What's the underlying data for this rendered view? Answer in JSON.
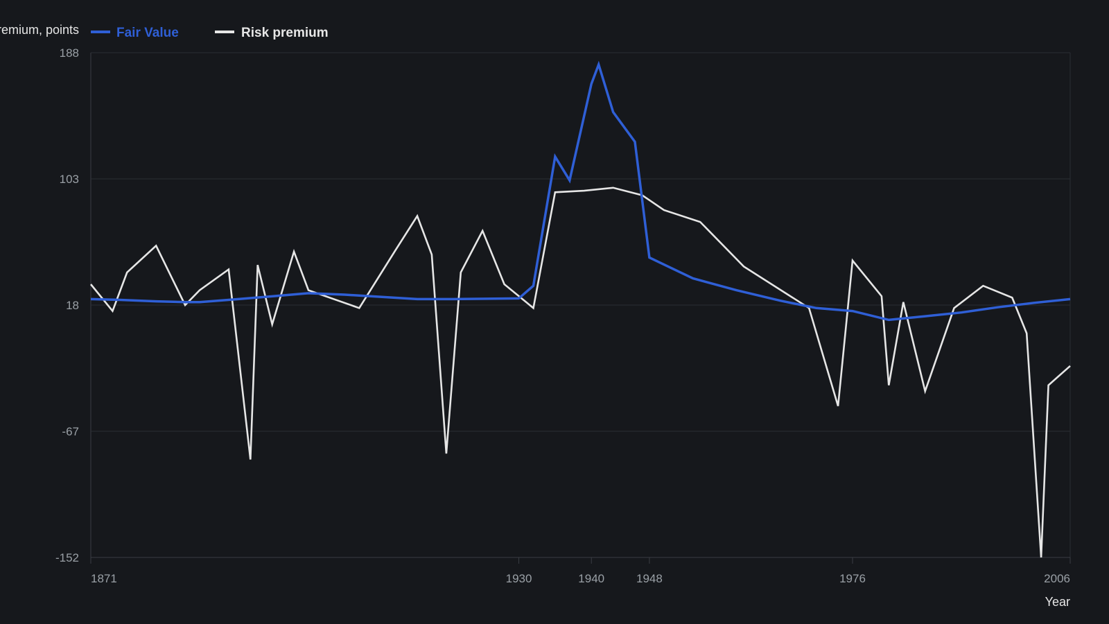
{
  "chart_data": {
    "type": "line",
    "ylabel": "Fair Value, Risk premium, points",
    "xlabel": "Year",
    "ylim": [
      -152,
      188
    ],
    "xlim": [
      1871,
      2006
    ],
    "yticks": [
      -152,
      -67,
      18,
      103,
      188
    ],
    "xticks": [
      1871,
      1930,
      1940,
      1948,
      1976,
      2006
    ],
    "legend_position": "top-left",
    "grid": true,
    "series": [
      {
        "name": "Fair Value",
        "color": "#2f5fd6",
        "points": [
          [
            1871,
            22
          ],
          [
            1875,
            21.5
          ],
          [
            1880,
            20.5
          ],
          [
            1884,
            20
          ],
          [
            1886,
            20
          ],
          [
            1890,
            21.5
          ],
          [
            1895,
            23.5
          ],
          [
            1901,
            26
          ],
          [
            1906,
            25
          ],
          [
            1916,
            22
          ],
          [
            1921,
            22
          ],
          [
            1930,
            22.5
          ],
          [
            1932,
            31
          ],
          [
            1935,
            118
          ],
          [
            1937,
            102
          ],
          [
            1940,
            167
          ],
          [
            1941,
            180
          ],
          [
            1943,
            148
          ],
          [
            1946,
            128
          ],
          [
            1948,
            50
          ],
          [
            1954,
            36
          ],
          [
            1960,
            28
          ],
          [
            1966,
            21
          ],
          [
            1971,
            16
          ],
          [
            1976,
            14
          ],
          [
            1981,
            8
          ],
          [
            1986,
            10.5
          ],
          [
            1991,
            13
          ],
          [
            1996,
            16.5
          ],
          [
            2001,
            19.5
          ],
          [
            2006,
            22
          ]
        ]
      },
      {
        "name": "Risk premium",
        "color": "#e6e6e6",
        "points": [
          [
            1871,
            32
          ],
          [
            1874,
            14
          ],
          [
            1876,
            40
          ],
          [
            1880,
            58
          ],
          [
            1884,
            18
          ],
          [
            1886,
            28
          ],
          [
            1890,
            42
          ],
          [
            1893,
            -86
          ],
          [
            1894,
            45
          ],
          [
            1896,
            5
          ],
          [
            1899,
            54
          ],
          [
            1901,
            28
          ],
          [
            1908,
            16
          ],
          [
            1913,
            55
          ],
          [
            1916,
            78
          ],
          [
            1918,
            52
          ],
          [
            1920,
            -82
          ],
          [
            1922,
            40
          ],
          [
            1925,
            68
          ],
          [
            1928,
            32
          ],
          [
            1932,
            16
          ],
          [
            1935,
            94
          ],
          [
            1939,
            95
          ],
          [
            1943,
            97
          ],
          [
            1947,
            92
          ],
          [
            1950,
            82
          ],
          [
            1955,
            74
          ],
          [
            1961,
            44
          ],
          [
            1970,
            16
          ],
          [
            1974,
            -50
          ],
          [
            1976,
            48
          ],
          [
            1980,
            24
          ],
          [
            1981,
            -36
          ],
          [
            1983,
            20
          ],
          [
            1986,
            -40
          ],
          [
            1990,
            16
          ],
          [
            1994,
            31
          ],
          [
            1998,
            23
          ],
          [
            2000,
            -1
          ],
          [
            2002,
            -152
          ],
          [
            2003,
            -36
          ],
          [
            2006,
            -23
          ]
        ]
      }
    ]
  }
}
